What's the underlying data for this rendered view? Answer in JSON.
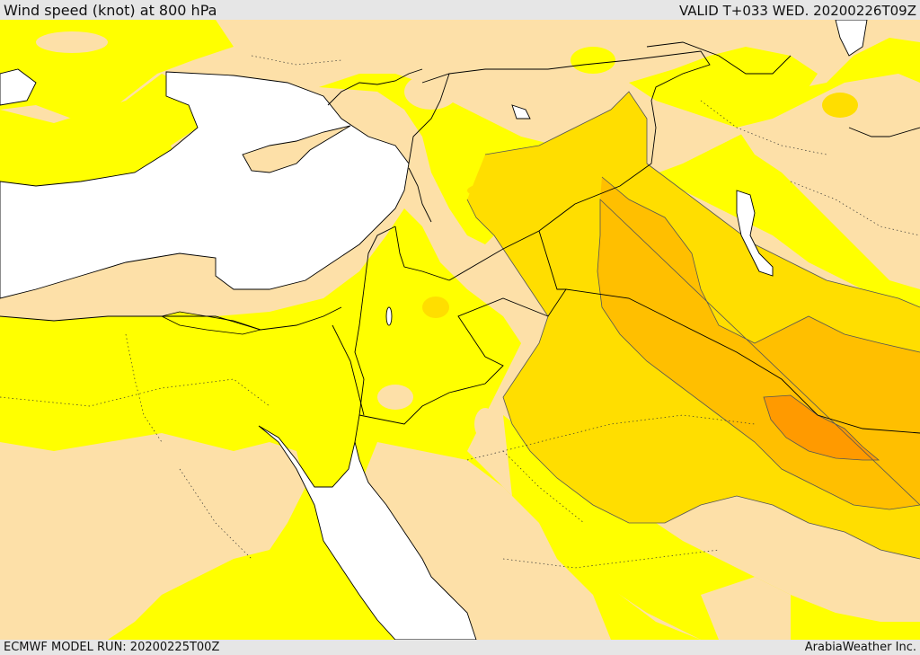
{
  "header": {
    "title": "Wind speed (knot) at 800 hPa",
    "valid": "VALID T+033 WED. 20200226T09Z"
  },
  "footer": {
    "model_run": "ECMWF MODEL RUN: 20200225T00Z",
    "credit": "ArabiaWeather Inc."
  },
  "map": {
    "colors": {
      "land_calm": "#fde0a8",
      "band_1": "#ffff00",
      "band_2": "#ffde00",
      "band_3": "#ffbf00",
      "band_4": "#ff9a00",
      "sea": "#ffffff",
      "lines": "#000000"
    }
  }
}
